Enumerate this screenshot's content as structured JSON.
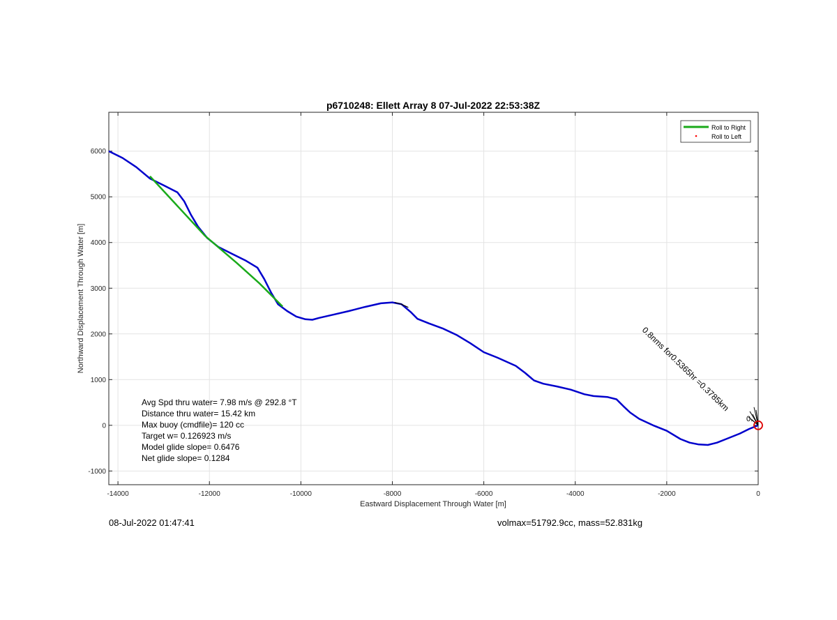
{
  "chart_data": {
    "type": "line",
    "title": "p6710248: Ellett Array 8 07-Jul-2022 22:53:38Z",
    "xlabel": "Eastward Displacement Through Water [m]",
    "ylabel": "Northward Displacement Through Water [m]",
    "xlim": [
      -14200,
      0
    ],
    "ylim": [
      -1300,
      6850
    ],
    "xticks": [
      -14000,
      -12000,
      -10000,
      -8000,
      -6000,
      -4000,
      -2000,
      0
    ],
    "yticks": [
      -1000,
      0,
      1000,
      2000,
      3000,
      4000,
      5000,
      6000
    ],
    "grid": true,
    "legend_position": "top-right",
    "legend": [
      {
        "label": "Roll to Right",
        "color": "#1aaa1a",
        "marker": "line"
      },
      {
        "label": "Roll to Left",
        "color": "#ff0000",
        "marker": "dot"
      }
    ],
    "series": [
      {
        "color": "#0000cc",
        "x": [
          -14200,
          -13900,
          -13600,
          -13300,
          -13000,
          -12700,
          -12550,
          -12400,
          -12250,
          -12050,
          -11800,
          -11500,
          -11200,
          -10950,
          -10800,
          -10650,
          -10500,
          -10300,
          -10100,
          -9900,
          -9750,
          -9600,
          -9300,
          -8950,
          -8600,
          -8250,
          -8000,
          -7800,
          -7600,
          -7450,
          -7200,
          -6900,
          -6600,
          -6300,
          -6000,
          -5700,
          -5300,
          -5100,
          -4900,
          -4700,
          -4400,
          -4100,
          -3800,
          -3600,
          -3300,
          -3100,
          -2950,
          -2800,
          -2600,
          -2300,
          -2000,
          -1700,
          -1500,
          -1300,
          -1100,
          -900,
          -700,
          -400,
          -200,
          0
        ],
        "y": [
          6000,
          5850,
          5650,
          5400,
          5250,
          5100,
          4900,
          4600,
          4350,
          4100,
          3900,
          3750,
          3600,
          3450,
          3200,
          2900,
          2650,
          2500,
          2380,
          2320,
          2310,
          2350,
          2420,
          2500,
          2590,
          2670,
          2690,
          2650,
          2480,
          2330,
          2230,
          2120,
          1980,
          1800,
          1600,
          1480,
          1300,
          1150,
          980,
          910,
          850,
          780,
          680,
          640,
          620,
          570,
          420,
          280,
          140,
          0,
          -120,
          -300,
          -380,
          -420,
          -430,
          -380,
          -300,
          -180,
          -80,
          0
        ]
      },
      {
        "color": "#1aaa1a",
        "x": [
          -13300,
          -12100,
          -11400,
          -10900,
          -10400
        ],
        "y": [
          5450,
          4150,
          3550,
          3100,
          2600
        ]
      },
      {
        "color": "#000000",
        "x": [
          -7950,
          -7800,
          -7650
        ],
        "y": [
          2690,
          2650,
          2580
        ]
      }
    ],
    "annotations": [
      {
        "text": "Avg Spd thru water=  7.98 m/s @ 292.8 °T"
      },
      {
        "text": "Distance thru water= 15.42 km"
      },
      {
        "text": "Max buoy (cmdfile)= 120 cc"
      },
      {
        "text": "Target w= 0.126923 m/s"
      },
      {
        "text": "Model glide slope= 0.6476"
      },
      {
        "text": "Net glide slope= 0.1284"
      }
    ],
    "rotated_annotation": "0.8nms for0.5365hr =0.3785km",
    "marker_label": "0.",
    "start_marker": {
      "x": 0,
      "y": 0,
      "color": "#dd0000"
    }
  },
  "footer": {
    "left_timestamp": "08-Jul-2022 01:47:41",
    "right_info": "volmax=51792.9cc, mass=52.831kg"
  }
}
